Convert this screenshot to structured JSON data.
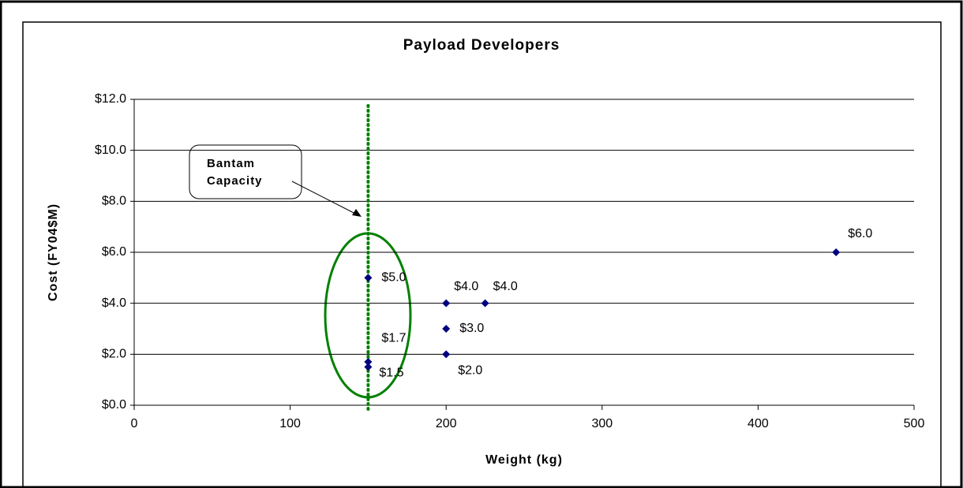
{
  "chart_data": {
    "type": "scatter",
    "title": "Payload Developers",
    "xlabel": "Weight (kg)",
    "ylabel": "Cost (FY04$M)",
    "annotation": [
      "Bantam",
      "Capacity"
    ],
    "series": [
      {
        "name": "Payloads",
        "color": "#000080",
        "x": [
          150,
          150,
          150,
          200,
          225,
          200,
          200,
          450
        ],
        "values": [
          5.0,
          1.7,
          1.5,
          4.0,
          4.0,
          3.0,
          2.0,
          6.0
        ],
        "value_labels": [
          "$5.0",
          "$1.7",
          "$1.5",
          "$4.0",
          "$4.0",
          "$3.0",
          "$2.0",
          "$6.0"
        ]
      }
    ],
    "xlim": [
      0,
      500
    ],
    "xticks": [
      0,
      100,
      200,
      300,
      400,
      500
    ],
    "ylim": [
      0,
      12
    ],
    "yticks": [
      {
        "value": 0,
        "label": "$0.0"
      },
      {
        "value": 2,
        "label": "$2.0"
      },
      {
        "value": 4,
        "label": "$4.0"
      },
      {
        "value": 6,
        "label": "$6.0"
      },
      {
        "value": 8,
        "label": "$8.0"
      },
      {
        "value": 10,
        "label": "$10.0"
      },
      {
        "value": 12,
        "label": "$12.0"
      }
    ],
    "grid": true,
    "reference_line": {
      "x": 150,
      "color": "#008000"
    }
  }
}
